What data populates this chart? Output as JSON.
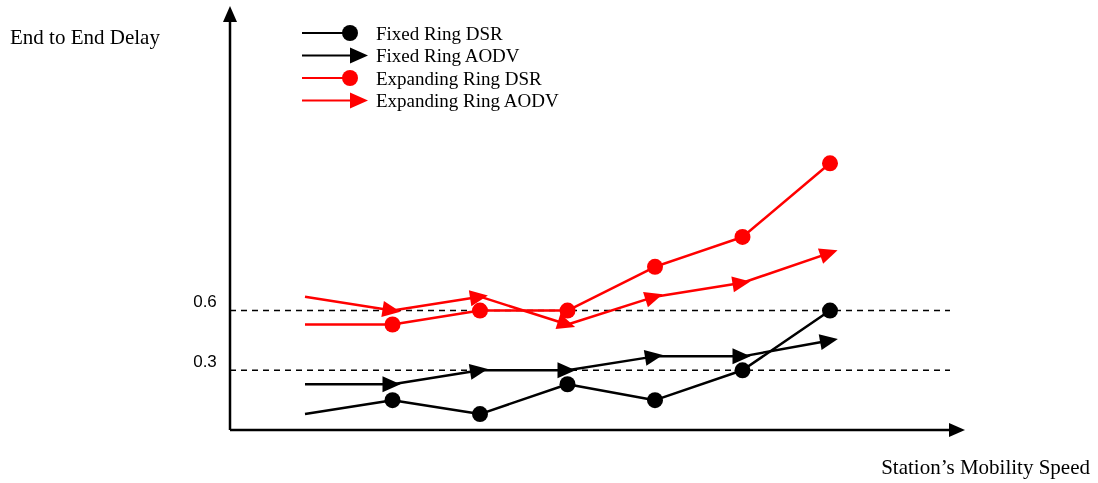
{
  "chart_data": {
    "type": "line",
    "xlabel": "Station’s Mobility Speed",
    "ylabel": "End to End Delay",
    "categories": [
      null,
      null,
      null,
      null,
      null,
      null,
      null
    ],
    "ylim": [
      0,
      2.05
    ],
    "yticks": [
      0.3,
      0.6
    ],
    "legend": "top left",
    "tick_labels": "y",
    "ref_lines": [
      {
        "axis": "y",
        "value": 0.3,
        "line_style": "dashed",
        "color": "#000000"
      },
      {
        "axis": "y",
        "value": 0.6,
        "line_style": "dashed",
        "color": "#000000"
      }
    ],
    "series": [
      {
        "name": "Fixed Ring DSR",
        "color": "#000000",
        "marker": "circle",
        "values": [
          0.08,
          0.15,
          0.08,
          0.23,
          0.15,
          0.3,
          0.6
        ]
      },
      {
        "name": "Fixed Ring AODV",
        "color": "#000000",
        "marker": "triangle",
        "values": [
          0.23,
          0.23,
          0.3,
          0.3,
          0.37,
          0.37,
          0.45
        ]
      },
      {
        "name": "Expanding Ring DSR",
        "color": "#ff0000",
        "marker": "circle",
        "values": [
          0.53,
          0.53,
          0.6,
          0.6,
          0.82,
          0.97,
          1.34
        ]
      },
      {
        "name": "Expanding Ring AODV",
        "color": "#ff0000",
        "marker": "triangle",
        "values": [
          0.67,
          0.6,
          0.67,
          0.53,
          0.67,
          0.74,
          0.89
        ]
      }
    ]
  }
}
